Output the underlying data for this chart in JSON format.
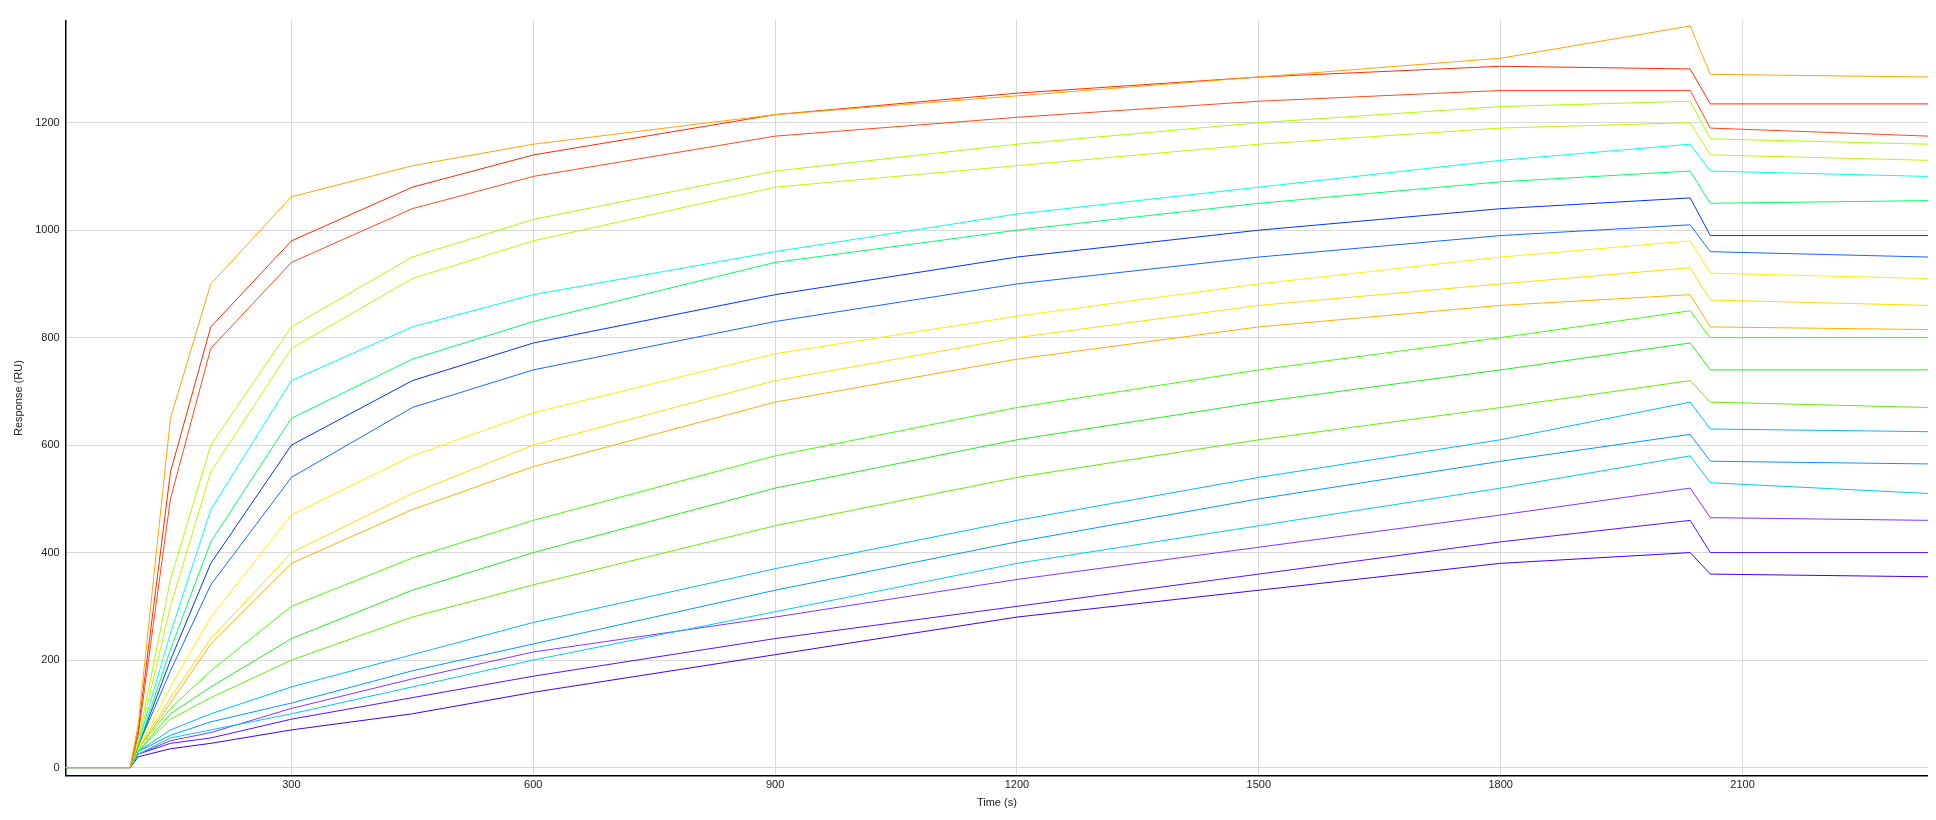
{
  "chart_data": {
    "type": "line",
    "xlabel": "Time (s)",
    "ylabel": "Response (RU)",
    "xlim": [
      20,
      2330
    ],
    "ylim": [
      -15,
      1390
    ],
    "xticks": [
      300,
      600,
      900,
      1200,
      1500,
      1800,
      2100
    ],
    "yticks": [
      0,
      200,
      400,
      600,
      800,
      1000,
      1200
    ],
    "grid": true,
    "legend": false,
    "marker": "none",
    "line_style": "solid",
    "x": [
      20,
      100,
      110,
      150,
      200,
      300,
      450,
      600,
      900,
      1200,
      1500,
      1800,
      2035,
      2060,
      2330
    ],
    "series": [
      {
        "color": "#ffa500",
        "values": [
          0,
          0,
          80,
          650,
          900,
          1062,
          1120,
          1160,
          1215,
          1250,
          1285,
          1320,
          1380,
          1290,
          1285
        ]
      },
      {
        "color": "#ff2a00",
        "values": [
          0,
          0,
          70,
          550,
          820,
          980,
          1080,
          1140,
          1215,
          1255,
          1285,
          1305,
          1300,
          1235,
          1235
        ]
      },
      {
        "color": "#ff4a1a",
        "values": [
          0,
          0,
          60,
          500,
          780,
          940,
          1040,
          1100,
          1175,
          1210,
          1240,
          1260,
          1260,
          1190,
          1175
        ]
      },
      {
        "color": "#aaff00",
        "values": [
          0,
          0,
          50,
          350,
          600,
          820,
          950,
          1020,
          1110,
          1160,
          1200,
          1230,
          1240,
          1170,
          1160
        ]
      },
      {
        "color": "#ccf000",
        "values": [
          0,
          0,
          45,
          300,
          550,
          780,
          910,
          980,
          1080,
          1120,
          1160,
          1190,
          1200,
          1140,
          1130
        ]
      },
      {
        "color": "#00ffee",
        "values": [
          0,
          0,
          45,
          250,
          480,
          720,
          820,
          880,
          960,
          1030,
          1080,
          1130,
          1160,
          1110,
          1100
        ]
      },
      {
        "color": "#00ff66",
        "values": [
          0,
          0,
          40,
          220,
          420,
          650,
          760,
          830,
          940,
          1000,
          1050,
          1090,
          1110,
          1050,
          1055
        ]
      },
      {
        "color": "#0033ff",
        "values": [
          0,
          0,
          40,
          200,
          380,
          600,
          720,
          790,
          880,
          950,
          1000,
          1040,
          1060,
          990,
          990
        ]
      },
      {
        "color": "#1a66ff",
        "values": [
          0,
          0,
          40,
          180,
          340,
          540,
          670,
          740,
          830,
          900,
          950,
          990,
          1010,
          960,
          950
        ]
      },
      {
        "color": "#ffee00",
        "values": [
          0,
          0,
          35,
          150,
          280,
          470,
          580,
          660,
          770,
          840,
          900,
          950,
          980,
          920,
          910
        ]
      },
      {
        "color": "#ffdd00",
        "values": [
          0,
          0,
          35,
          130,
          240,
          400,
          510,
          600,
          720,
          800,
          860,
          900,
          930,
          870,
          860
        ]
      },
      {
        "color": "#ffb000",
        "values": [
          0,
          0,
          35,
          120,
          230,
          380,
          480,
          560,
          680,
          760,
          820,
          860,
          880,
          820,
          815
        ]
      },
      {
        "color": "#44ff00",
        "values": [
          0,
          0,
          35,
          110,
          180,
          300,
          390,
          460,
          580,
          670,
          740,
          800,
          850,
          800,
          800
        ]
      },
      {
        "color": "#22ee22",
        "values": [
          0,
          0,
          30,
          100,
          150,
          240,
          330,
          400,
          520,
          610,
          680,
          740,
          790,
          740,
          740
        ]
      },
      {
        "color": "#66ee00",
        "values": [
          0,
          0,
          30,
          90,
          130,
          200,
          280,
          340,
          450,
          540,
          610,
          670,
          720,
          680,
          670
        ]
      },
      {
        "color": "#00bbff",
        "values": [
          0,
          0,
          30,
          70,
          100,
          150,
          210,
          270,
          370,
          460,
          540,
          610,
          680,
          630,
          625
        ]
      },
      {
        "color": "#0099ff",
        "values": [
          0,
          0,
          30,
          60,
          85,
          120,
          180,
          230,
          330,
          420,
          500,
          570,
          620,
          570,
          565
        ]
      },
      {
        "color": "#00ccee",
        "values": [
          0,
          0,
          25,
          55,
          70,
          100,
          150,
          200,
          290,
          380,
          450,
          520,
          580,
          530,
          510
        ]
      },
      {
        "color": "#8833ff",
        "values": [
          0,
          0,
          25,
          50,
          65,
          110,
          165,
          215,
          280,
          350,
          410,
          470,
          520,
          465,
          460
        ]
      },
      {
        "color": "#5511ff",
        "values": [
          0,
          0,
          25,
          45,
          55,
          90,
          130,
          170,
          240,
          300,
          360,
          420,
          460,
          400,
          400
        ]
      },
      {
        "color": "#4400ee",
        "values": [
          0,
          0,
          20,
          35,
          45,
          70,
          100,
          140,
          210,
          280,
          330,
          380,
          400,
          360,
          355
        ]
      }
    ]
  }
}
